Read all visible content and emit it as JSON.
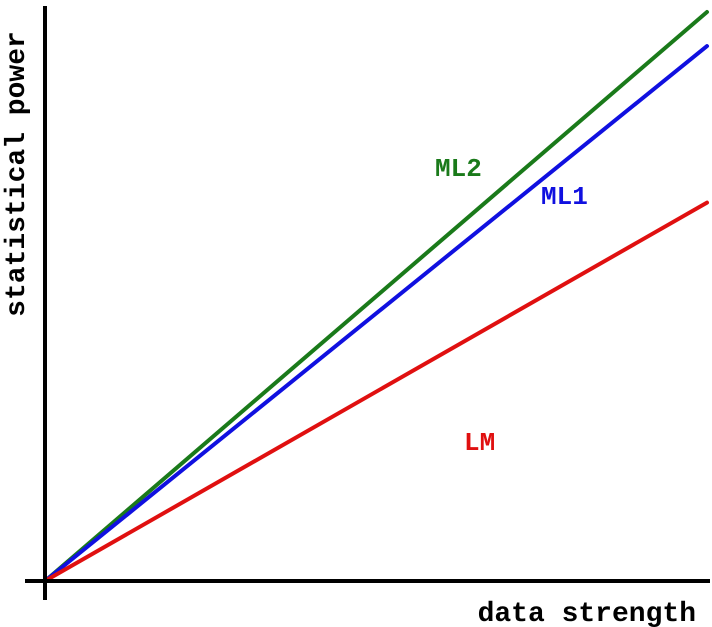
{
  "chart_data": {
    "type": "line",
    "xlabel": "data strength",
    "ylabel": "statistical power",
    "xlim": [
      0,
      1
    ],
    "ylim": [
      0,
      1
    ],
    "grid": false,
    "legend": "none",
    "series": [
      {
        "name": "ML2",
        "color": "#1a7a1a",
        "x": [
          0,
          1
        ],
        "y": [
          0,
          1.0
        ]
      },
      {
        "name": "ML1",
        "color": "#1010e0",
        "x": [
          0,
          1
        ],
        "y": [
          0,
          0.94
        ]
      },
      {
        "name": "LM",
        "color": "#e01010",
        "x": [
          0,
          1
        ],
        "y": [
          0,
          0.665
        ]
      }
    ]
  }
}
